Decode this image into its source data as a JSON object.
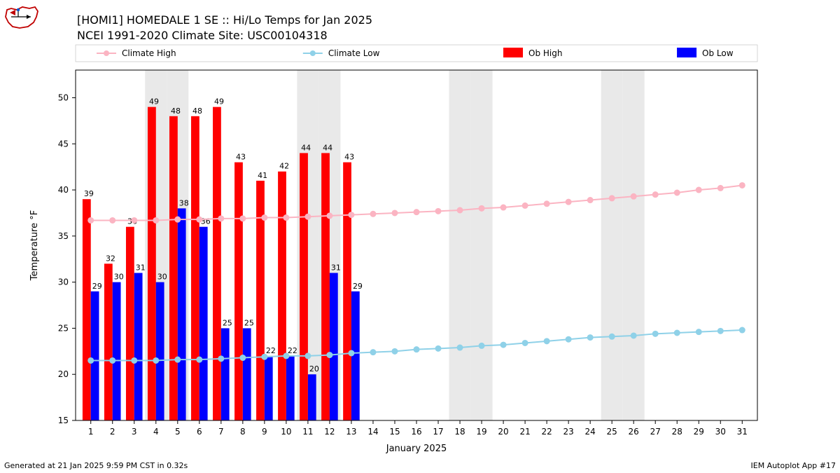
{
  "title_line1": "[HOMI1] HOMEDALE 1 SE :: Hi/Lo Temps for Jan 2025",
  "title_line2": "NCEI 1991-2020 Climate Site: USC00104318",
  "footer_left": "Generated at 21 Jan 2025 9:59 PM CST in 0.32s",
  "footer_right": "IEM Autoplot App #17",
  "chart": {
    "type": "bar+line",
    "xlabel": "January 2025",
    "ylabel": "Temperature °F",
    "xlim": [
      0.3,
      31.7
    ],
    "ylim": [
      15,
      53
    ],
    "ytick_step": 5,
    "days": [
      1,
      2,
      3,
      4,
      5,
      6,
      7,
      8,
      9,
      10,
      11,
      12,
      13,
      14,
      15,
      16,
      17,
      18,
      19,
      20,
      21,
      22,
      23,
      24,
      25,
      26,
      27,
      28,
      29,
      30,
      31
    ],
    "weekend_days": [
      4,
      5,
      11,
      12,
      18,
      19,
      25,
      26
    ],
    "shade_color": "#e9e9e9",
    "background_color": "#ffffff",
    "bar_width": 0.38,
    "ob_high": {
      "label": "Ob High",
      "color": "#ff0000",
      "values": [
        39,
        32,
        36,
        49,
        48,
        48,
        49,
        43,
        41,
        42,
        44,
        44,
        43
      ]
    },
    "ob_low": {
      "label": "Ob Low",
      "color": "#0000ff",
      "values": [
        29,
        30,
        31,
        30,
        38,
        36,
        25,
        25,
        22,
        22,
        20,
        31,
        29
      ]
    },
    "climate_high": {
      "label": "Climate High",
      "color": "#fbb4c2",
      "marker_color": "#fbb4c2",
      "values": [
        36.7,
        36.7,
        36.7,
        36.7,
        36.8,
        36.8,
        36.9,
        36.9,
        37.0,
        37.0,
        37.1,
        37.2,
        37.3,
        37.4,
        37.5,
        37.6,
        37.7,
        37.8,
        38.0,
        38.1,
        38.3,
        38.5,
        38.7,
        38.9,
        39.1,
        39.3,
        39.5,
        39.7,
        40.0,
        40.2,
        40.5
      ]
    },
    "climate_low": {
      "label": "Climate Low",
      "color": "#8fd1e8",
      "marker_color": "#8fd1e8",
      "values": [
        21.5,
        21.5,
        21.5,
        21.5,
        21.6,
        21.6,
        21.7,
        21.8,
        21.9,
        22.0,
        22.0,
        22.1,
        22.3,
        22.4,
        22.5,
        22.7,
        22.8,
        22.9,
        23.1,
        23.2,
        23.4,
        23.6,
        23.8,
        24.0,
        24.1,
        24.2,
        24.4,
        24.5,
        24.6,
        24.7,
        24.8
      ]
    },
    "legend": {
      "items": [
        "Climate High",
        "Climate Low",
        "Ob High",
        "Ob Low"
      ]
    },
    "title_fontsize": 16,
    "label_fontsize": 13,
    "tick_fontsize": 12,
    "value_label_fontsize": 11
  }
}
